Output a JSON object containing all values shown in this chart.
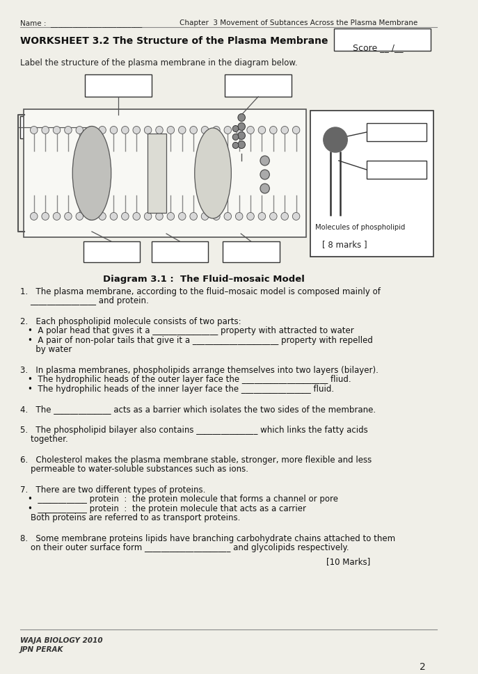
{
  "bg_color": "#f0efe8",
  "header_name": "Name :  _________________________",
  "header_chapter": "Chapter  3 Movement of Subtances Across the Plasma Membrane",
  "worksheet_title": "WORKSHEET 3.2 The Structure of the Plasma Membrane",
  "score_label": "Score __ /__",
  "instruction": "Label the structure of the plasma membrane in the diagram below.",
  "diagram_caption": "Diagram 3.1 :  The Fluid–mosaic Model",
  "marks_diagram": "[ 8 marks ]",
  "marks_questions": "[10 Marks]",
  "footer_line1": "WAJA BIOLOGY 2010",
  "footer_line2": "JPN PERAK",
  "page_number": "2",
  "q1a": "1.   The plasma membrane, according to the fluid–mosaic model is composed mainly of",
  "q1b": "    ________________ and protein.",
  "q2": "2.   Each phospholipid molecule consists of two parts:",
  "q2a": "A polar head that gives it a ________________ property with attracted to water",
  "q2b": "A pair of non-polar tails that give it a _____________________ property with repelled",
  "q2c": "by water",
  "q3": "3.   In plasma membranes, phospholipids arrange themselves into two layers (bilayer).",
  "q3a": "The hydrophilic heads of the outer layer face the _____________________ fliud.",
  "q3b": "The hydrophilic heads of the inner layer face the _________________ fluid.",
  "q4": "4.   The ______________ acts as a barrier which isolates the two sides of the membrane.",
  "q5a": "5.   The phospholipid bilayer also contains _______________ which links the fatty acids",
  "q5b": "    together.",
  "q6a": "6.   Cholesterol makes the plasma membrane stable, stronger, more flexible and less",
  "q6b": "    permeable to water-soluble substances such as ions.",
  "q7": "7.   There are two different types of proteins.",
  "q7a": "____________ protein  :  the protein molecule that forms a channel or pore",
  "q7b": "____________ protein  :  the protein molecule that acts as a carrier",
  "q7c": "    Both proteins are referred to as transport proteins.",
  "q8a": "8.   Some membrane proteins lipids have branching carbohydrate chains attached to them",
  "q8b": "    on their outer surface form _____________________ and glycolipids respectively."
}
